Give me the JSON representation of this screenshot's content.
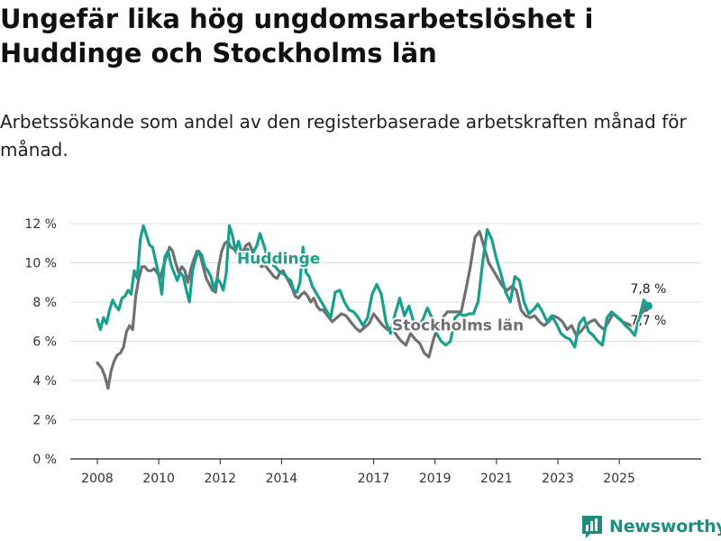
{
  "title": "Ungefär lika hög ungdomsarbetslöshet i Huddinge och Stockholms län",
  "subtitle": "Arbetssökande som andel av den registerbaserade arbetskraften månad för månad.",
  "brand": {
    "name": "Newsworthy",
    "color": "#1a8f7d"
  },
  "chart_data": {
    "type": "line",
    "title": "Ungefär lika hög ungdomsarbetslöshet i Huddinge och Stockholms län",
    "xlabel": "",
    "ylabel": "",
    "x_range": [
      2008,
      2026.2
    ],
    "ylim": [
      0,
      12
    ],
    "y_ticks": [
      0,
      2,
      4,
      6,
      8,
      10,
      12
    ],
    "y_tick_labels": [
      "0 %",
      "2 %",
      "4 %",
      "6 %",
      "8 %",
      "10 %",
      "12 %"
    ],
    "x_ticks": [
      2008,
      2010,
      2012,
      2014,
      2017,
      2019,
      2021,
      2023,
      2025
    ],
    "x_tick_labels": [
      "2008",
      "2010",
      "2012",
      "2014",
      "2017",
      "2019",
      "2021",
      "2023",
      "2025"
    ],
    "grid": true,
    "series": [
      {
        "name": "Stockholms län",
        "label": "Stockholms län",
        "color": "#707070",
        "end_label": "7,7 %",
        "x": [
          2008.0,
          2008.15,
          2008.25,
          2008.35,
          2008.45,
          2008.55,
          2008.65,
          2008.75,
          2008.85,
          2008.95,
          2009.05,
          2009.15,
          2009.25,
          2009.35,
          2009.45,
          2009.55,
          2009.65,
          2009.75,
          2009.85,
          2009.95,
          2010.05,
          2010.15,
          2010.25,
          2010.35,
          2010.45,
          2010.55,
          2010.65,
          2010.75,
          2010.85,
          2010.95,
          2011.05,
          2011.15,
          2011.25,
          2011.35,
          2011.45,
          2011.55,
          2011.65,
          2011.75,
          2011.85,
          2011.95,
          2012.05,
          2012.15,
          2012.25,
          2012.35,
          2012.45,
          2012.55,
          2012.65,
          2012.75,
          2012.85,
          2012.95,
          2013.05,
          2013.15,
          2013.25,
          2013.35,
          2013.45,
          2013.55,
          2013.65,
          2013.75,
          2013.85,
          2013.95,
          2014.05,
          2014.15,
          2014.25,
          2014.35,
          2014.45,
          2014.55,
          2014.65,
          2014.75,
          2014.85,
          2014.95,
          2015.05,
          2015.15,
          2015.25,
          2015.35,
          2015.5,
          2015.65,
          2015.8,
          2015.95,
          2016.1,
          2016.25,
          2016.4,
          2016.55,
          2016.7,
          2016.85,
          2017.0,
          2017.15,
          2017.3,
          2017.45,
          2017.6,
          2017.75,
          2017.9,
          2018.05,
          2018.2,
          2018.35,
          2018.5,
          2018.65,
          2018.8,
          2018.95,
          2019.1,
          2019.25,
          2019.4,
          2019.55,
          2019.7,
          2019.85,
          2020.0,
          2020.15,
          2020.3,
          2020.45,
          2020.6,
          2020.75,
          2020.9,
          2021.05,
          2021.2,
          2021.35,
          2021.5,
          2021.65,
          2021.8,
          2021.95,
          2022.1,
          2022.25,
          2022.4,
          2022.55,
          2022.7,
          2022.85,
          2023.0,
          2023.15,
          2023.3,
          2023.45,
          2023.6,
          2023.75,
          2023.9,
          2024.05,
          2024.2,
          2024.35,
          2024.5,
          2024.65,
          2024.8,
          2024.95,
          2025.1,
          2025.25,
          2025.4,
          2025.55,
          2025.7,
          2025.85
        ],
        "values": [
          4.9,
          4.6,
          4.2,
          3.6,
          4.5,
          5.0,
          5.3,
          5.4,
          5.7,
          6.5,
          6.8,
          6.6,
          8.3,
          9.2,
          9.8,
          9.8,
          9.6,
          9.6,
          9.7,
          9.5,
          9.2,
          9.8,
          10.3,
          10.8,
          10.6,
          10.0,
          9.5,
          9.8,
          9.6,
          9.0,
          9.7,
          10.2,
          10.6,
          10.4,
          9.8,
          9.2,
          8.9,
          8.6,
          8.5,
          9.8,
          10.6,
          11.0,
          11.1,
          10.8,
          10.7,
          10.5,
          10.4,
          10.6,
          10.9,
          11.0,
          10.6,
          10.2,
          10.0,
          9.8,
          9.9,
          9.7,
          9.5,
          9.3,
          9.2,
          9.5,
          9.6,
          9.3,
          9.0,
          8.7,
          8.3,
          8.2,
          8.4,
          8.5,
          8.3,
          8.0,
          8.2,
          7.8,
          7.6,
          7.6,
          7.3,
          7.0,
          7.2,
          7.4,
          7.3,
          7.0,
          6.7,
          6.5,
          6.7,
          6.9,
          7.4,
          7.1,
          6.8,
          6.6,
          6.7,
          6.3,
          6.0,
          5.8,
          6.4,
          6.1,
          5.9,
          5.4,
          5.2,
          6.1,
          6.8,
          7.2,
          7.5,
          7.5,
          7.5,
          7.5,
          8.6,
          9.8,
          11.3,
          11.6,
          10.8,
          10.0,
          9.6,
          9.2,
          8.8,
          8.6,
          8.8,
          8.6,
          7.6,
          7.3,
          7.2,
          7.3,
          7.0,
          6.8,
          7.0,
          7.3,
          7.2,
          7.0,
          6.6,
          6.8,
          6.3,
          6.5,
          6.8,
          7.0,
          7.1,
          6.8,
          6.6,
          7.0,
          7.4,
          7.2,
          7.0,
          6.9,
          6.8,
          7.0,
          7.3,
          7.7
        ]
      },
      {
        "name": "Huddinge",
        "label": "Huddinge",
        "color": "#17a08d",
        "end_label": "7,8 %",
        "x": [
          2008.0,
          2008.1,
          2008.2,
          2008.3,
          2008.4,
          2008.5,
          2008.6,
          2008.7,
          2008.8,
          2008.9,
          2009.0,
          2009.1,
          2009.2,
          2009.3,
          2009.4,
          2009.5,
          2009.6,
          2009.7,
          2009.8,
          2009.9,
          2010.0,
          2010.1,
          2010.2,
          2010.3,
          2010.4,
          2010.5,
          2010.6,
          2010.7,
          2010.8,
          2010.9,
          2011.0,
          2011.1,
          2011.2,
          2011.3,
          2011.4,
          2011.5,
          2011.6,
          2011.7,
          2011.8,
          2011.9,
          2012.0,
          2012.1,
          2012.2,
          2012.3,
          2012.4,
          2012.5,
          2012.6,
          2012.7,
          2012.8,
          2012.9,
          2013.0,
          2013.1,
          2013.2,
          2013.3,
          2013.4,
          2013.5,
          2013.6,
          2013.7,
          2013.8,
          2013.9,
          2014.0,
          2014.1,
          2014.2,
          2014.3,
          2014.4,
          2014.5,
          2014.6,
          2014.7,
          2014.8,
          2014.9,
          2015.0,
          2015.15,
          2015.3,
          2015.45,
          2015.6,
          2015.75,
          2015.9,
          2016.05,
          2016.2,
          2016.35,
          2016.5,
          2016.65,
          2016.8,
          2016.95,
          2017.1,
          2017.25,
          2017.4,
          2017.55,
          2017.7,
          2017.85,
          2018.0,
          2018.15,
          2018.3,
          2018.45,
          2018.6,
          2018.75,
          2018.9,
          2019.05,
          2019.2,
          2019.35,
          2019.5,
          2019.65,
          2019.8,
          2019.95,
          2020.1,
          2020.25,
          2020.4,
          2020.55,
          2020.7,
          2020.85,
          2021.0,
          2021.15,
          2021.3,
          2021.45,
          2021.6,
          2021.75,
          2021.9,
          2022.05,
          2022.2,
          2022.35,
          2022.5,
          2022.65,
          2022.8,
          2022.95,
          2023.1,
          2023.25,
          2023.4,
          2023.55,
          2023.7,
          2023.85,
          2024.0,
          2024.15,
          2024.3,
          2024.45,
          2024.6,
          2024.75,
          2024.9,
          2025.05,
          2025.2,
          2025.35,
          2025.5,
          2025.65,
          2025.8,
          2025.95
        ],
        "values": [
          7.1,
          6.6,
          7.2,
          6.9,
          7.6,
          8.1,
          7.8,
          7.6,
          8.2,
          8.3,
          8.6,
          8.4,
          9.6,
          9.2,
          11.2,
          11.9,
          11.4,
          10.9,
          10.8,
          10.1,
          9.4,
          8.4,
          10.3,
          10.6,
          9.9,
          9.5,
          9.1,
          9.5,
          9.3,
          8.6,
          8.0,
          9.6,
          10.2,
          10.6,
          10.4,
          9.8,
          9.6,
          9.3,
          8.6,
          9.2,
          9.0,
          8.6,
          9.5,
          11.9,
          11.4,
          10.6,
          11.1,
          10.5,
          10.5,
          10.7,
          10.2,
          10.6,
          10.9,
          11.5,
          11.0,
          10.5,
          10.3,
          9.9,
          9.8,
          9.6,
          9.5,
          9.4,
          9.2,
          9.1,
          8.6,
          8.5,
          9.0,
          10.8,
          9.5,
          9.3,
          8.8,
          8.4,
          8.0,
          7.6,
          7.2,
          8.5,
          8.6,
          8.0,
          7.6,
          7.5,
          7.2,
          6.8,
          7.2,
          8.4,
          8.9,
          8.4,
          7.0,
          6.4,
          7.4,
          8.2,
          7.3,
          7.8,
          7.0,
          6.8,
          7.1,
          7.7,
          7.2,
          6.4,
          6.0,
          5.8,
          6.0,
          7.2,
          7.4,
          7.3,
          7.4,
          7.4,
          8.0,
          10.0,
          11.7,
          11.2,
          10.2,
          9.4,
          8.5,
          8.0,
          9.3,
          9.1,
          8.0,
          7.4,
          7.6,
          7.9,
          7.5,
          7.0,
          7.3,
          6.9,
          6.4,
          6.2,
          6.1,
          5.7,
          6.9,
          7.2,
          6.5,
          6.3,
          6.0,
          5.8,
          7.2,
          7.5,
          7.3,
          7.1,
          6.8,
          6.6,
          6.3,
          7.2,
          8.1,
          7.8
        ]
      }
    ]
  }
}
